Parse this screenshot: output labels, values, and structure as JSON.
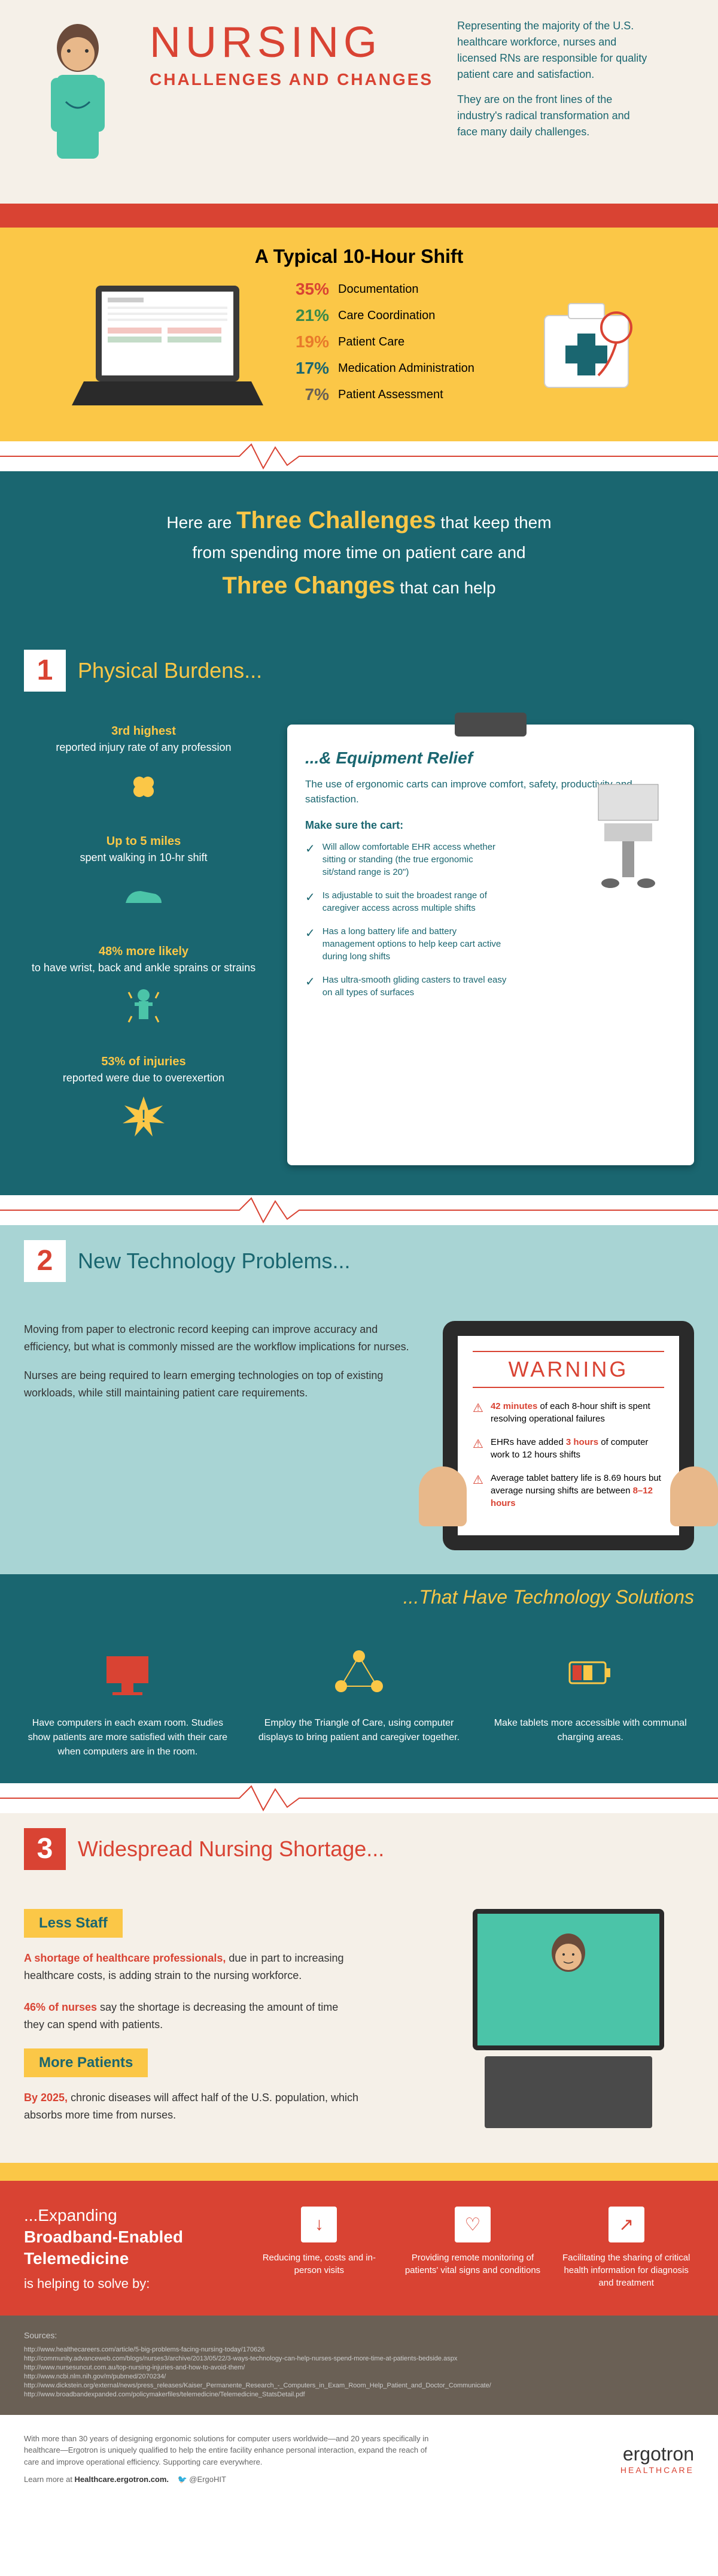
{
  "header": {
    "title": "NURSING",
    "subtitle": "CHALLENGES AND CHANGES",
    "title_color": "#d94333",
    "subtitle_color": "#d94333",
    "intro1": "Representing the majority of the U.S. healthcare workforce, nurses and licensed RNs are responsible for quality patient care and satisfaction.",
    "intro2": "They are on the front lines of the industry's radical transformation and face many daily challenges.",
    "intro_color": "#1a6670",
    "nurse_scrub_color": "#4bc4a8",
    "nurse_skin_color": "#e8b88a",
    "nurse_hair_color": "#6a4a3a"
  },
  "shift": {
    "title": "A Typical 10-Hour Shift",
    "title_color": "#d94333",
    "bg_color": "#fbc747",
    "stats": [
      {
        "pct": "35%",
        "label": "Documentation",
        "color": "#d94333"
      },
      {
        "pct": "21%",
        "label": "Care Coordination",
        "color": "#3a8a4a"
      },
      {
        "pct": "19%",
        "label": "Patient Care",
        "color": "#e87a2a"
      },
      {
        "pct": "17%",
        "label": "Medication Administration",
        "color": "#1a6670"
      },
      {
        "pct": "7%",
        "label": "Patient Assessment",
        "color": "#6a6055"
      }
    ]
  },
  "transition": {
    "line1_a": "Here are ",
    "line1_b": "Three Challenges",
    "line1_c": " that keep them",
    "line2": "from spending more time on patient care and",
    "line3": "Three Changes",
    "line3_b": " that can help",
    "em_color": "#fbc747"
  },
  "section1": {
    "num": "1",
    "title": "Physical Burdens...",
    "num_color": "#d94333",
    "burdens": [
      {
        "em": "3rd highest",
        "txt": "reported injury rate of any profession",
        "icon": "bandage"
      },
      {
        "em": "Up to 5 miles",
        "txt": "spent walking in 10-hr shift",
        "icon": "shoe"
      },
      {
        "em": "48% more likely",
        "txt": "to have wrist, back and ankle sprains or strains",
        "icon": "person"
      },
      {
        "em": "53% of injuries",
        "txt": "reported were due to overexertion",
        "icon": "burst"
      }
    ],
    "clipboard": {
      "title": "...& Equipment Relief",
      "intro": "The use of ergonomic carts can improve comfort, safety, productivity and satisfaction.",
      "sub": "Make sure the cart:",
      "checks": [
        "Will allow comfortable EHR access whether sitting or standing (the true ergonomic sit/stand range is 20\")",
        "Is adjustable to suit the broadest range of caregiver access across multiple shifts",
        "Has a long battery life and battery management options to help keep cart active during long shifts",
        "Has ultra-smooth gliding casters to travel easy on all types of surfaces"
      ]
    }
  },
  "section2": {
    "num": "2",
    "title": "New Technology Problems...",
    "p1": "Moving from paper to electronic record keeping can improve accuracy and efficiency, but what is commonly missed are the workflow implications for nurses.",
    "p2": "Nurses are being required to learn emerging technologies on top of existing workloads, while still maintaining patient care requirements.",
    "warning": {
      "title": "WARNING",
      "items": [
        {
          "em": "42 minutes",
          "txt": " of each 8-hour shift is spent resolving operational failures"
        },
        {
          "em": "3 hours",
          "pre": "EHRs have added ",
          "txt": " of computer work to 12 hours shifts"
        },
        {
          "em": "8–12 hours",
          "pre": "Average tablet battery life is 8.69 hours but average nursing shifts are between ",
          "txt": ""
        }
      ]
    },
    "solutions_title": "...That Have Technology Solutions",
    "solutions": [
      {
        "icon": "computer",
        "txt": "Have computers in each exam room. Studies show patients are more satisfied with their care when computers are in the room.",
        "color": "#d94333"
      },
      {
        "icon": "triangle",
        "txt": "Employ the Triangle of Care, using computer displays to bring patient and caregiver together.",
        "color": "#fbc747"
      },
      {
        "icon": "battery",
        "txt": "Make tablets more accessible with communal charging areas.",
        "color": "#fbc747"
      }
    ]
  },
  "section3": {
    "num": "3",
    "title": "Widespread Nursing Shortage...",
    "badge1": "Less Staff",
    "p1_a": "A shortage of healthcare professionals,",
    "p1_b": " due in part to increasing healthcare costs, is adding strain to the nursing workforce.",
    "p2_a": "46% of nurses",
    "p2_b": " say the shortage is decreasing the amount of time they can spend with patients.",
    "badge2": "More Patients",
    "p3_a": "By 2025,",
    "p3_b": " chronic diseases will affect half of the U.S. population, which absorbs more time from nurses."
  },
  "broadband": {
    "title_a": "...Expanding",
    "title_b": "Broadband-Enabled Telemedicine",
    "sub": "is helping to solve by:",
    "items": [
      {
        "icon": "↓",
        "txt": "Reducing time, costs and in-person visits"
      },
      {
        "icon": "♡",
        "txt": "Providing remote monitoring of patients' vital signs and conditions"
      },
      {
        "icon": "↗",
        "txt": "Facilitating the sharing of critical health information for diagnosis and treatment"
      }
    ]
  },
  "sources": {
    "title": "Sources:",
    "lines": [
      "http://www.healthecareers.com/article/5-big-problems-facing-nursing-today/170626",
      "http://community.advanceweb.com/blogs/nurses3/archive/2013/05/22/3-ways-technology-can-help-nurses-spend-more-time-at-patients-bedside.aspx",
      "http://www.nursesuncut.com.au/top-nursing-injuries-and-how-to-avoid-them/",
      "http://www.ncbi.nlm.nih.gov/m/pubmed/2070234/",
      "http://www.dickstein.org/external/news/press_releases/Kaiser_Permanente_Research_-_Computers_in_Exam_Room_Help_Patient_and_Doctor_Communicate/",
      "http://www.broadbandexpanded.com/policymakerfiles/telemedicine/Telemedicine_StatsDetail.pdf"
    ]
  },
  "footer": {
    "text": "With more than 30 years of designing ergonomic solutions for computer users worldwide—and 20 years specifically in healthcare—Ergotron is uniquely qualified to help the entire facility enhance personal interaction, expand the reach of care and improve operational efficiency. Supporting care everywhere.",
    "link_pre": "Learn more at ",
    "link": "Healthcare.ergotron.com.",
    "twitter": "@ErgoHIT",
    "logo": "ergotron",
    "logo_sub": "HEALTHCARE"
  }
}
